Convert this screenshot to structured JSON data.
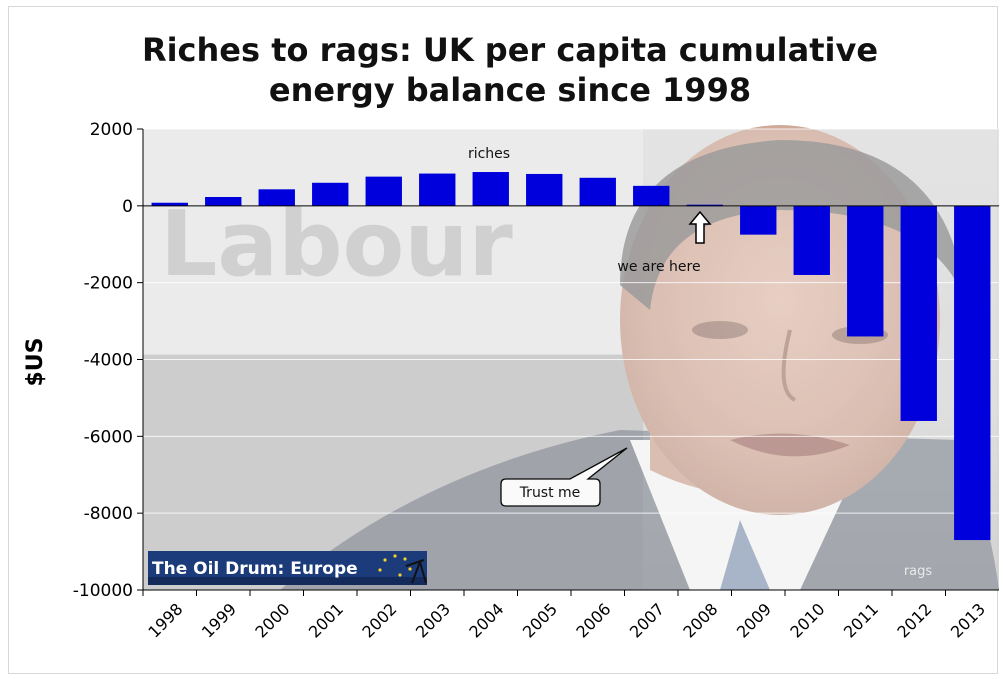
{
  "chart_data": {
    "type": "bar",
    "title": "Riches to rags: UK per capita cumulative\nenergy balance since 1998",
    "ylabel": "$US",
    "xlabel": "",
    "ylim": [
      -10000,
      2000
    ],
    "yticks": [
      "2000",
      "0",
      "-2000",
      "-4000",
      "-6000",
      "-8000",
      "-10000"
    ],
    "categories": [
      "1998",
      "1999",
      "2000",
      "2001",
      "2002",
      "2003",
      "2004",
      "2005",
      "2006",
      "2007",
      "2008",
      "2009",
      "2010",
      "2011",
      "2012",
      "2013"
    ],
    "values": [
      80,
      230,
      430,
      600,
      760,
      840,
      880,
      830,
      730,
      520,
      30,
      -750,
      -1800,
      -3400,
      -5600,
      -8700
    ],
    "bar_color": "#0000dd",
    "grid": true,
    "annotations": {
      "riches": "riches",
      "we_are_here": "we are here",
      "trust_me": "Trust me",
      "rags": "rags"
    },
    "logo_text": "The Oil Drum: Europe"
  }
}
